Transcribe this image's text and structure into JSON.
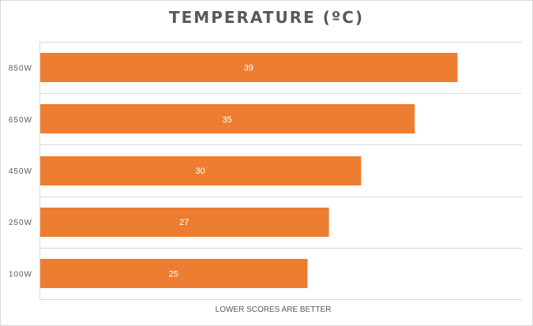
{
  "chart_data": {
    "type": "bar",
    "orientation": "horizontal",
    "title": "TEMPERATURE (ºC)",
    "xlabel": "LOWER SCORES ARE BETTER",
    "ylabel": "",
    "categories": [
      "850W",
      "650W",
      "450W",
      "250W",
      "100W"
    ],
    "values": [
      39,
      35,
      30,
      27,
      25
    ],
    "xlim": [
      0,
      45
    ],
    "grid": true,
    "legend": "none",
    "colors": {
      "bar": "#ed7d31",
      "grid": "#d9d9d9",
      "text": "#595959"
    }
  }
}
